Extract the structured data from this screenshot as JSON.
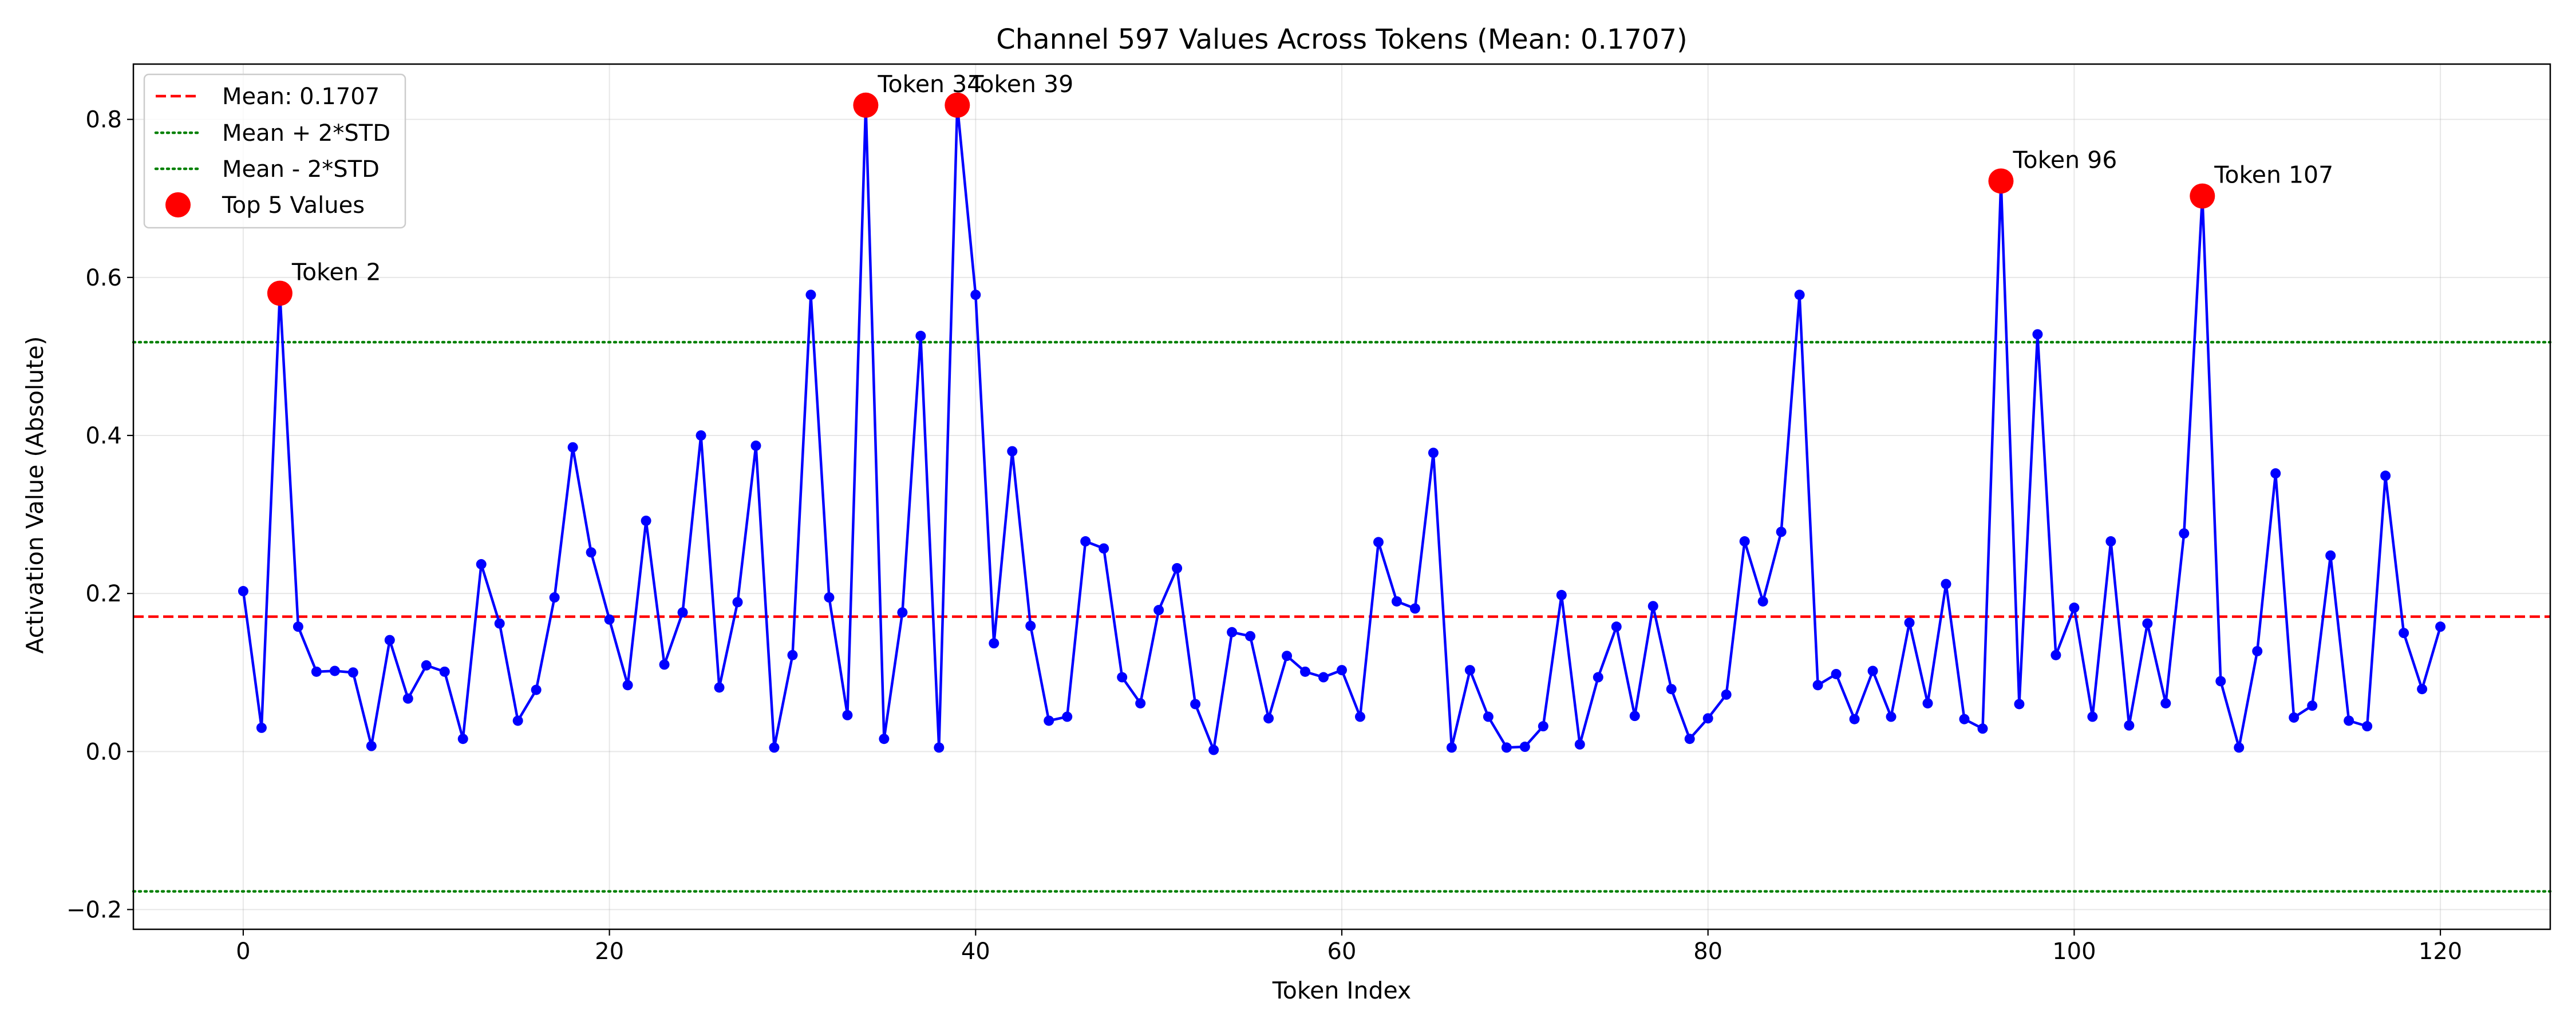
{
  "chart_data": {
    "type": "line",
    "title": "Channel 597 Values Across Tokens (Mean: 0.1707)",
    "xlabel": "Token Index",
    "ylabel": "Activation Value (Absolute)",
    "xlim": [
      -6,
      126
    ],
    "ylim": [
      -0.225,
      0.87
    ],
    "xticks": [
      0,
      20,
      40,
      60,
      80,
      100,
      120
    ],
    "xtick_labels": [
      "0",
      "20",
      "40",
      "60",
      "80",
      "100",
      "120"
    ],
    "yticks": [
      -0.2,
      0.0,
      0.2,
      0.4,
      0.6,
      0.8
    ],
    "ytick_labels": [
      "−0.2",
      "0.0",
      "0.2",
      "0.4",
      "0.6",
      "0.8"
    ],
    "grid": true,
    "legend_position": "top-left",
    "series": [
      {
        "color": "#0000ff",
        "marker": "circle",
        "x": [
          0,
          1,
          2,
          3,
          4,
          5,
          6,
          7,
          8,
          9,
          10,
          11,
          12,
          13,
          14,
          15,
          16,
          17,
          18,
          19,
          20,
          21,
          22,
          23,
          24,
          25,
          26,
          27,
          28,
          29,
          30,
          31,
          32,
          33,
          34,
          35,
          36,
          37,
          38,
          39,
          40,
          41,
          42,
          43,
          44,
          45,
          46,
          47,
          48,
          49,
          50,
          51,
          52,
          53,
          54,
          55,
          56,
          57,
          58,
          59,
          60,
          61,
          62,
          63,
          64,
          65,
          66,
          67,
          68,
          69,
          70,
          71,
          72,
          73,
          74,
          75,
          76,
          77,
          78,
          79,
          80,
          81,
          82,
          83,
          84,
          85,
          86,
          87,
          88,
          89,
          90,
          91,
          92,
          93,
          94,
          95,
          96,
          97,
          98,
          99,
          100,
          101,
          102,
          103,
          104,
          105,
          106,
          107,
          108,
          109,
          110,
          111,
          112,
          113,
          114,
          115,
          116,
          117,
          118,
          119,
          120
        ],
        "values": [
          0.203,
          0.03,
          0.58,
          0.158,
          0.101,
          0.102,
          0.1,
          0.007,
          0.141,
          0.067,
          0.109,
          0.101,
          0.016,
          0.237,
          0.162,
          0.039,
          0.078,
          0.195,
          0.385,
          0.252,
          0.167,
          0.084,
          0.292,
          0.11,
          0.176,
          0.4,
          0.081,
          0.189,
          0.387,
          0.005,
          0.122,
          0.578,
          0.195,
          0.046,
          0.818,
          0.016,
          0.176,
          0.526,
          0.005,
          0.818,
          0.578,
          0.137,
          0.38,
          0.159,
          0.039,
          0.044,
          0.266,
          0.257,
          0.094,
          0.061,
          0.179,
          0.232,
          0.06,
          0.002,
          0.151,
          0.146,
          0.042,
          0.121,
          0.101,
          0.094,
          0.103,
          0.044,
          0.265,
          0.19,
          0.181,
          0.378,
          0.005,
          0.103,
          0.044,
          0.005,
          0.006,
          0.032,
          0.198,
          0.009,
          0.094,
          0.158,
          0.045,
          0.184,
          0.079,
          0.016,
          0.042,
          0.072,
          0.266,
          0.19,
          0.278,
          0.578,
          0.084,
          0.098,
          0.041,
          0.102,
          0.044,
          0.163,
          0.061,
          0.212,
          0.041,
          0.029,
          0.722,
          0.06,
          0.528,
          0.122,
          0.182,
          0.044,
          0.266,
          0.033,
          0.162,
          0.061,
          0.276,
          0.703,
          0.089,
          0.005,
          0.127,
          0.352,
          0.043,
          0.058,
          0.248,
          0.039,
          0.032,
          0.349,
          0.15,
          0.079,
          0.158
        ]
      }
    ],
    "reference_lines": [
      {
        "name": "Mean: 0.1707",
        "value": 0.1707,
        "color": "#ff0000",
        "style": "dashed"
      },
      {
        "name": "Mean + 2*STD",
        "value": 0.518,
        "color": "#008000",
        "style": "dotted"
      },
      {
        "name": "Mean - 2*STD",
        "value": -0.177,
        "color": "#008000",
        "style": "dotted"
      }
    ],
    "highlight": {
      "name": "Top 5 Values",
      "color": "#ff0000",
      "points": [
        {
          "x": 2,
          "y": 0.58,
          "label": "Token 2"
        },
        {
          "x": 34,
          "y": 0.818,
          "label": "Token 34"
        },
        {
          "x": 39,
          "y": 0.818,
          "label": "Token 39"
        },
        {
          "x": 96,
          "y": 0.722,
          "label": "Token 96"
        },
        {
          "x": 107,
          "y": 0.703,
          "label": "Token 107"
        }
      ]
    }
  }
}
